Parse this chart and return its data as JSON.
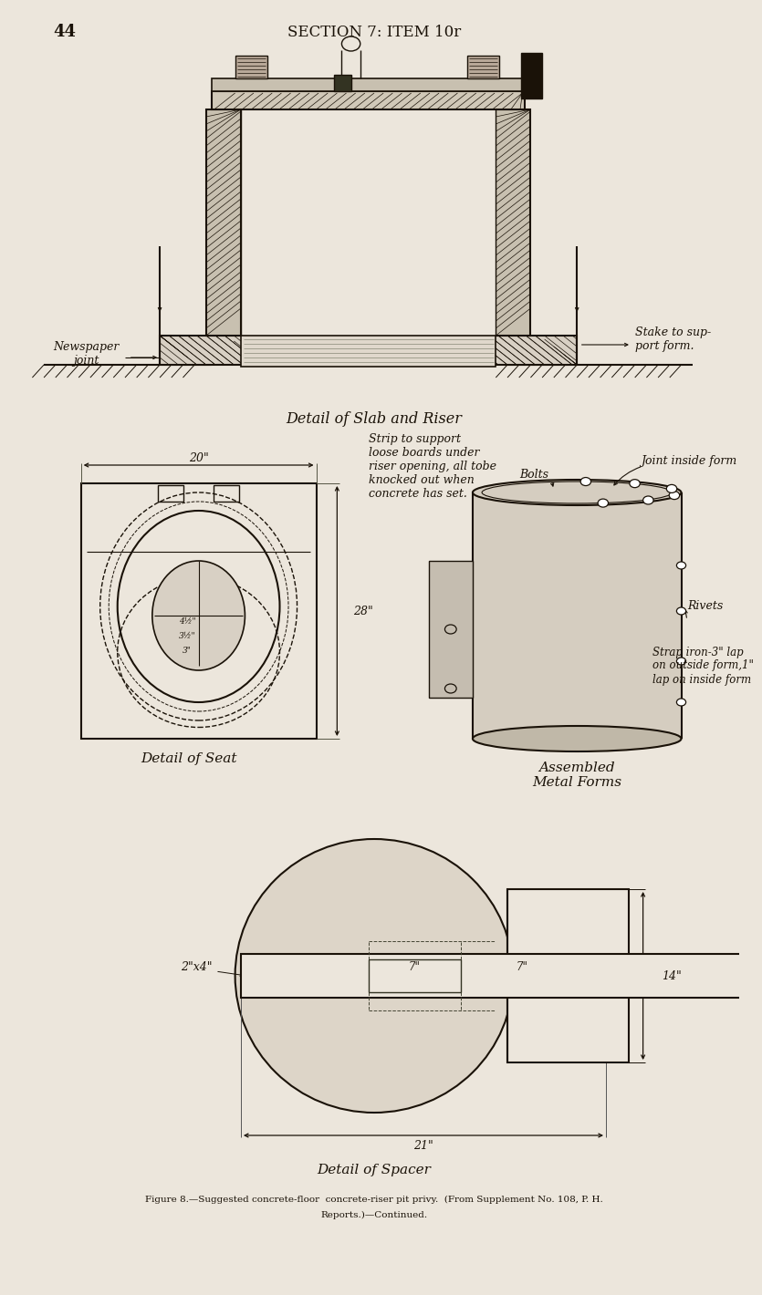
{
  "bg_color": "#ece6dc",
  "ink_color": "#1a1208",
  "page_number": "44",
  "header": "SECTION 7: ITEM 10r",
  "title1": "Detail of Slab and Riser",
  "title2": "Detail of Seat",
  "title3": "Assembled\nMetal Forms",
  "title4": "Detail of Spacer",
  "caption_line1": "Figure 8.—Suggested concrete-floor  concrete-riser pit privy.  (From Supplement No. 108, P. H.",
  "caption_line2": "Reports.)—Continued.",
  "label_newspaper": "Newspaper\njoint",
  "label_stake": "Stake to sup-\nport form.",
  "label_strip": "Strip to support\nloose boards under\nriser opening, all tobe\nknocked out when\nconcrete has set.",
  "label_joint": "Joint inside form",
  "label_bolts": "Bolts",
  "label_rivets": "Rivets",
  "label_strap": "Strap iron-3\" lap\non outside form,1\"\nlap on inside form",
  "label_20in": "20\"",
  "label_28in": "28\"",
  "label_2x4": "2\"x4\"",
  "label_7a": "7\"",
  "label_7b": "7\"",
  "label_14": "14\"",
  "label_21": "21\""
}
